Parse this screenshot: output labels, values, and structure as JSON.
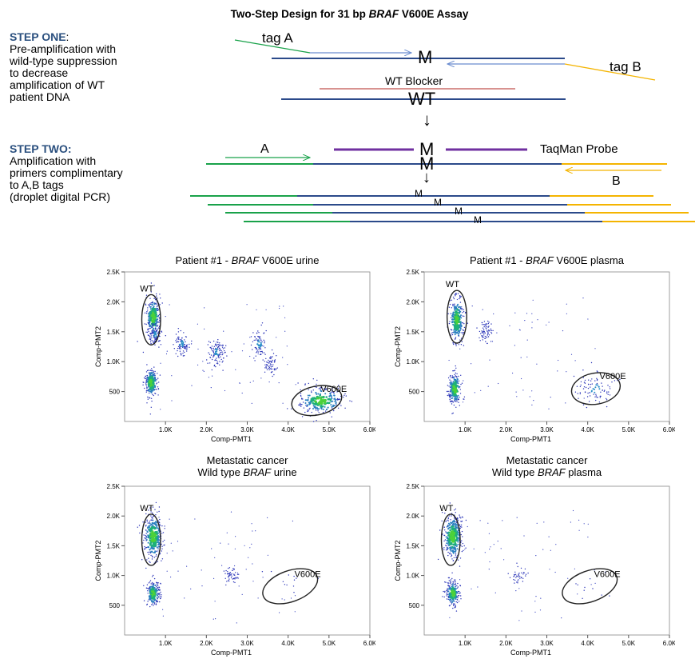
{
  "title": {
    "prefix": "Two-Step Design for 31 bp ",
    "gene": "BRAF",
    "suffix": " V600E Assay"
  },
  "step_one": {
    "head": "STEP ONE",
    "colon": ":",
    "lines": [
      "Pre-amplification with",
      "wild-type suppression",
      "to decrease",
      "amplification of WT",
      "patient DNA"
    ]
  },
  "step_two": {
    "head": "STEP TWO:",
    "lines": [
      "Amplification with",
      "primers complimentary",
      "to A,B tags",
      "(droplet digital PCR)"
    ]
  },
  "diagram": {
    "tag_a": "tag A",
    "tag_b": "tag B",
    "mutant": "M",
    "wt_blocker": "WT Blocker",
    "wt": "WT",
    "primer_a": "A",
    "primer_b": "B",
    "taqman": "TaqMan Probe",
    "arrow_down": "↓"
  },
  "colors": {
    "dna": "#2b4a8a",
    "tag_a_green": "#19a24a",
    "tag_b_yellow": "#f4b400",
    "arrow_blue": "#6a8ccf",
    "blocker_red": "#c0504d",
    "probe_purple": "#7030a0",
    "step_head": "#2a4f7e"
  },
  "plots": [
    {
      "title_prefix": "Patient #1 - ",
      "title_gene": "BRAF",
      "title_suffix": " V600E  urine",
      "title_line1": "",
      "wt_label": "WT",
      "mut_label": "V600E",
      "xlabel": "Comp-PMT1",
      "ylabel": "Comp-PMT2"
    },
    {
      "title_prefix": "Patient #1 - ",
      "title_gene": "BRAF",
      "title_suffix": " V600E  plasma",
      "title_line1": "",
      "wt_label": "WT",
      "mut_label": "V600E",
      "xlabel": "Comp-PMT1",
      "ylabel": "Comp-PMT2"
    },
    {
      "title_line1": "Metastatic cancer",
      "title_prefix": "Wild type ",
      "title_gene": "BRAF",
      "title_suffix": " urine",
      "wt_label": "WT",
      "mut_label": "V600E",
      "xlabel": "Comp-PMT1",
      "ylabel": "Comp-PMT2"
    },
    {
      "title_line1": "Metastatic cancer",
      "title_prefix": "Wild type ",
      "title_gene": "BRAF",
      "title_suffix": " plasma",
      "wt_label": "WT",
      "mut_label": "V600E",
      "xlabel": "Comp-PMT1",
      "ylabel": "Comp-PMT2"
    }
  ],
  "axes": {
    "x_ticks": [
      "1.0K",
      "2.0K",
      "3.0K",
      "4.0K",
      "5.0K",
      "6.0K"
    ],
    "y_ticks": [
      "2.5K",
      "2.0K",
      "1.5K",
      "1.0K",
      "500"
    ],
    "xlim": [
      0,
      6000
    ],
    "ylim": [
      0,
      2500
    ]
  },
  "clusters": [
    [
      {
        "x": 700,
        "y": 1750,
        "sx": 90,
        "sy": 170,
        "n": 260
      },
      {
        "x": 750,
        "y": 1450,
        "sx": 80,
        "sy": 90,
        "n": 90
      },
      {
        "x": 650,
        "y": 650,
        "sx": 80,
        "sy": 130,
        "n": 220
      },
      {
        "x": 1400,
        "y": 1300,
        "sx": 90,
        "sy": 90,
        "n": 90
      },
      {
        "x": 2250,
        "y": 1150,
        "sx": 100,
        "sy": 110,
        "n": 110
      },
      {
        "x": 3300,
        "y": 1300,
        "sx": 90,
        "sy": 120,
        "n": 80
      },
      {
        "x": 3550,
        "y": 950,
        "sx": 90,
        "sy": 90,
        "n": 60
      },
      {
        "x": 4800,
        "y": 350,
        "sx": 280,
        "sy": 120,
        "n": 240
      }
    ],
    [
      {
        "x": 800,
        "y": 1700,
        "sx": 90,
        "sy": 200,
        "n": 230
      },
      {
        "x": 750,
        "y": 550,
        "sx": 80,
        "sy": 140,
        "n": 200
      },
      {
        "x": 1500,
        "y": 1500,
        "sx": 80,
        "sy": 90,
        "n": 70
      },
      {
        "x": 4200,
        "y": 550,
        "sx": 230,
        "sy": 130,
        "n": 90
      }
    ],
    [
      {
        "x": 700,
        "y": 1650,
        "sx": 120,
        "sy": 200,
        "n": 300
      },
      {
        "x": 700,
        "y": 700,
        "sx": 80,
        "sy": 110,
        "n": 200
      },
      {
        "x": 2600,
        "y": 1000,
        "sx": 100,
        "sy": 70,
        "n": 50
      },
      {
        "x": 4000,
        "y": 850,
        "sx": 300,
        "sy": 150,
        "n": 12
      }
    ],
    [
      {
        "x": 700,
        "y": 1650,
        "sx": 120,
        "sy": 200,
        "n": 300
      },
      {
        "x": 700,
        "y": 700,
        "sx": 80,
        "sy": 110,
        "n": 200
      },
      {
        "x": 2300,
        "y": 1000,
        "sx": 100,
        "sy": 70,
        "n": 40
      },
      {
        "x": 4000,
        "y": 850,
        "sx": 300,
        "sy": 150,
        "n": 10
      }
    ]
  ]
}
